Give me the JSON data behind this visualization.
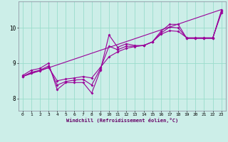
{
  "xlabel": "Windchill (Refroidissement éolien,°C)",
  "bg_color": "#cceee8",
  "line_color": "#990099",
  "grid_color": "#99ddcc",
  "xmin": -0.5,
  "xmax": 23.5,
  "ymin": 7.65,
  "ymax": 10.75,
  "yticks": [
    8,
    9,
    10
  ],
  "line1_x": [
    0,
    1,
    2,
    3,
    4,
    5,
    6,
    7,
    8,
    9,
    10,
    11,
    12,
    13,
    14,
    15,
    16,
    17,
    18,
    19,
    20,
    21,
    22,
    23
  ],
  "line1_y": [
    8.65,
    8.8,
    8.85,
    9.0,
    8.25,
    8.45,
    8.45,
    8.45,
    8.15,
    8.8,
    9.8,
    9.45,
    9.55,
    9.5,
    9.5,
    9.6,
    9.9,
    10.1,
    10.1,
    9.7,
    9.7,
    9.7,
    9.7,
    10.5
  ],
  "line2_y": [
    8.62,
    8.72,
    8.78,
    8.88,
    8.5,
    8.55,
    8.58,
    8.62,
    8.58,
    8.88,
    9.18,
    9.32,
    9.42,
    9.47,
    9.5,
    9.6,
    9.82,
    9.92,
    9.9,
    9.72,
    9.72,
    9.72,
    9.72,
    10.42
  ],
  "line3_y": [
    8.62,
    8.74,
    8.8,
    8.92,
    8.38,
    8.48,
    8.52,
    8.54,
    8.38,
    8.84,
    9.48,
    9.38,
    9.48,
    9.48,
    9.5,
    9.6,
    9.85,
    10.02,
    10.0,
    9.71,
    9.71,
    9.71,
    9.71,
    10.46
  ],
  "trend_x": [
    0,
    23
  ],
  "trend_y": [
    8.62,
    10.52
  ]
}
